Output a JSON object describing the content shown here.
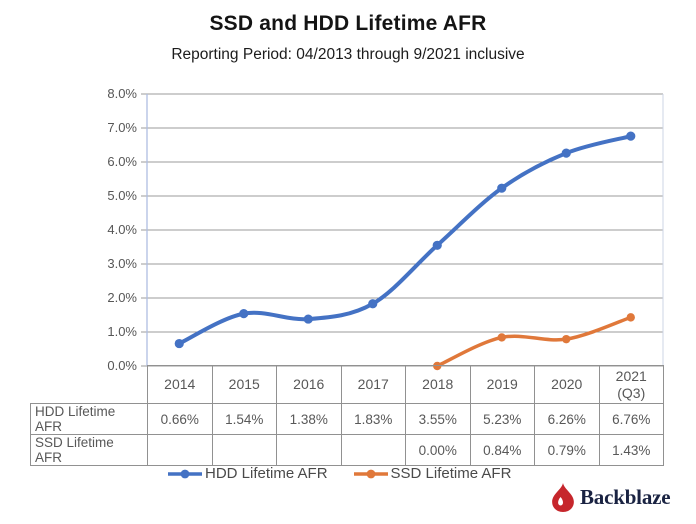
{
  "title": "SSD and HDD Lifetime AFR",
  "subtitle": "Reporting Period: 04/2013 through 9/2021 inclusive",
  "colors": {
    "hdd": "#4472C4",
    "ssd": "#E0783A",
    "grid": "#9B9B9B",
    "axis_line": "#AFBEE1",
    "plot_right_border": "#CDD5E6",
    "tick_text": "#565656",
    "logo_red": "#C6262C",
    "logo_navy": "#1A2342"
  },
  "chart_data": {
    "type": "line",
    "title": "SSD and HDD Lifetime AFR",
    "subtitle": "Reporting Period: 04/2013 through 9/2021 inclusive",
    "categories": [
      "2014",
      "2015",
      "2016",
      "2017",
      "2018",
      "2019",
      "2020",
      "2021\n(Q3)"
    ],
    "series": [
      {
        "name": "HDD Lifetime AFR",
        "color": "#4472C4",
        "values": [
          0.66,
          1.54,
          1.38,
          1.83,
          3.55,
          5.23,
          6.26,
          6.76
        ]
      },
      {
        "name": "SSD Lifetime AFR",
        "color": "#E0783A",
        "values": [
          null,
          null,
          null,
          null,
          0.0,
          0.84,
          0.79,
          1.43
        ]
      }
    ],
    "ylim": [
      0,
      8
    ],
    "ytick_step": 1,
    "ytick_labels": [
      "0.0%",
      "1.0%",
      "2.0%",
      "3.0%",
      "4.0%",
      "5.0%",
      "6.0%",
      "7.0%",
      "8.0%"
    ],
    "grid": true,
    "smooth": true,
    "legend_position": "bottom"
  },
  "table": {
    "header": [
      "2014",
      "2015",
      "2016",
      "2017",
      "2018",
      "2019",
      "2020",
      "2021\n(Q3)"
    ],
    "rows": [
      {
        "label": "HDD Lifetime AFR",
        "values": [
          "0.66%",
          "1.54%",
          "1.38%",
          "1.83%",
          "3.55%",
          "5.23%",
          "6.26%",
          "6.76%"
        ]
      },
      {
        "label": "SSD Lifetime AFR",
        "values": [
          "",
          "",
          "",
          "",
          "0.00%",
          "0.84%",
          "0.79%",
          "1.43%"
        ]
      }
    ]
  },
  "legend": [
    {
      "label": "HDD Lifetime AFR",
      "color": "#4472C4"
    },
    {
      "label": "SSD Lifetime AFR",
      "color": "#E0783A"
    }
  ],
  "logo": {
    "text": "Backblaze"
  }
}
